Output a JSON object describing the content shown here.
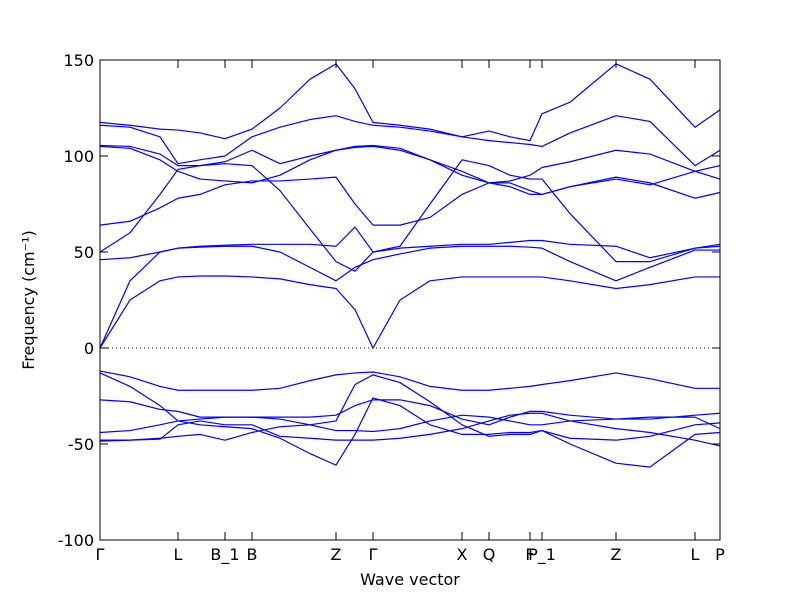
{
  "chart_data": {
    "type": "line",
    "xlabel": "Wave vector",
    "ylabel": "Frequency (cm⁻¹)",
    "x": [
      0,
      0.3,
      0.6,
      0.78,
      1.0,
      1.25,
      1.52,
      1.8,
      2.1,
      2.36,
      2.55,
      2.73,
      3.0,
      3.3,
      3.62,
      3.89,
      4.1,
      4.3,
      4.42,
      4.7,
      5.16,
      5.5,
      5.95,
      6.2
    ],
    "xlim": [
      0,
      6.2
    ],
    "ylim": [
      -100,
      150
    ],
    "yticks": [
      150,
      100,
      50,
      0,
      -50,
      -100
    ],
    "xticks": [
      {
        "value": 0,
        "label": "Γ"
      },
      {
        "value": 0.78,
        "label": "L"
      },
      {
        "value": 1.25,
        "label": "B_1"
      },
      {
        "value": 1.52,
        "label": "B"
      },
      {
        "value": 2.36,
        "label": "Z"
      },
      {
        "value": 2.73,
        "label": "Γ"
      },
      {
        "value": 3.62,
        "label": "X"
      },
      {
        "value": 3.89,
        "label": "Q"
      },
      {
        "value": 4.3,
        "label": "F"
      },
      {
        "value": 4.42,
        "label": "P_1"
      },
      {
        "value": 5.16,
        "label": "Z"
      },
      {
        "value": 5.95,
        "label": "L"
      },
      {
        "value": 6.2,
        "label": "P"
      }
    ],
    "hline": 0,
    "series": [
      {
        "color": "#0000ff",
        "values": [
          0,
          25,
          35,
          37,
          37.5,
          37.5,
          37,
          36,
          33,
          31,
          20,
          0,
          25,
          35,
          37,
          37,
          37,
          37,
          37,
          35,
          31,
          33,
          37,
          37
        ]
      },
      {
        "color": "#0000ff",
        "values": [
          0,
          35,
          50,
          52,
          52.5,
          53,
          53,
          50,
          42,
          35,
          42,
          46,
          49,
          52,
          53,
          53,
          53,
          52.5,
          52,
          45,
          35,
          42,
          51,
          51
        ]
      },
      {
        "color": "#0000ff",
        "values": [
          46,
          47,
          50,
          52,
          53,
          53.5,
          54,
          54,
          54,
          53,
          63,
          50,
          52,
          53,
          54,
          54,
          55,
          56,
          56,
          54,
          53,
          47,
          52,
          54
        ]
      },
      {
        "color": "#0000ff",
        "values": [
          50,
          60,
          80,
          93,
          95,
          96,
          95,
          82,
          62,
          45,
          40,
          50,
          53,
          75,
          98,
          95,
          90,
          88,
          88,
          70,
          45,
          45,
          52,
          53
        ]
      },
      {
        "color": "#0000ff",
        "values": [
          64,
          66,
          73,
          78,
          80,
          85,
          87,
          87,
          88,
          89,
          75,
          64,
          64,
          68,
          80,
          86,
          86,
          82,
          80,
          84,
          89,
          86,
          78,
          81
        ]
      },
      {
        "color": "#0000ff",
        "values": [
          105,
          104,
          98,
          92,
          88,
          87,
          86,
          90,
          98,
          103,
          104.5,
          105,
          103,
          98,
          90,
          86,
          87,
          90,
          94,
          97,
          103,
          101,
          92,
          88
        ]
      },
      {
        "color": "#0000ff",
        "values": [
          105.5,
          105,
          101,
          95,
          95,
          97,
          103,
          96,
          100,
          103,
          105,
          105.5,
          104,
          98,
          92,
          86,
          84,
          80,
          80,
          84,
          88,
          85,
          92,
          95
        ]
      },
      {
        "color": "#0000ff",
        "values": [
          116,
          115,
          110,
          96,
          98,
          100,
          110,
          115,
          119,
          121,
          118,
          116,
          115,
          113,
          110,
          108,
          107,
          106,
          105,
          112,
          121,
          118,
          95,
          103
        ]
      },
      {
        "color": "#0000ff",
        "values": [
          117.5,
          116,
          114,
          113.5,
          112,
          109,
          114,
          125,
          140,
          148,
          135,
          117.5,
          116,
          114,
          110,
          113,
          110,
          108,
          122,
          128,
          148,
          140,
          115,
          124
        ]
      },
      {
        "color": "#0000ff",
        "values": [
          -12,
          -15,
          -20,
          -22,
          -22,
          -22,
          -22,
          -21,
          -17,
          -14,
          -13,
          -12.5,
          -15,
          -20,
          -22,
          -22,
          -21,
          -20,
          -19,
          -17,
          -13,
          -16,
          -21,
          -21
        ]
      },
      {
        "color": "#0000ff",
        "values": [
          -13,
          -20,
          -30,
          -38,
          -40,
          -41,
          -42,
          -47,
          -55,
          -61,
          -45,
          -26,
          -30,
          -40,
          -45,
          -45,
          -44,
          -44,
          -43,
          -50,
          -60,
          -62,
          -45,
          -44
        ]
      },
      {
        "color": "#0000ff",
        "values": [
          -27,
          -28,
          -32,
          -33,
          -36,
          -36,
          -36,
          -37,
          -40,
          -43,
          -43,
          -43.5,
          -42,
          -38,
          -35,
          -36,
          -38,
          -40,
          -40,
          -38,
          -37,
          -37,
          -35,
          -34
        ]
      },
      {
        "color": "#0000ff",
        "values": [
          -44,
          -43,
          -40,
          -38,
          -37,
          -36,
          -36,
          -36,
          -36,
          -35,
          -30,
          -27,
          -27,
          -30,
          -37,
          -40,
          -36,
          -33,
          -33,
          -35,
          -37,
          -36,
          -36,
          -42
        ]
      },
      {
        "color": "#0000ff",
        "values": [
          -48,
          -48,
          -47,
          -46,
          -45,
          -48,
          -44,
          -41,
          -40,
          -38,
          -19,
          -14,
          -18,
          -28,
          -40,
          -46,
          -45,
          -45,
          -43,
          -47,
          -48,
          -46,
          -40,
          -39
        ]
      },
      {
        "color": "#0000ff",
        "values": [
          -48.5,
          -48,
          -47.5,
          -40,
          -38,
          -40,
          -40,
          -46,
          -47,
          -48,
          -48,
          -48,
          -47,
          -45,
          -42,
          -38,
          -35,
          -34,
          -34,
          -38,
          -42,
          -44,
          -48,
          -51
        ]
      }
    ]
  }
}
